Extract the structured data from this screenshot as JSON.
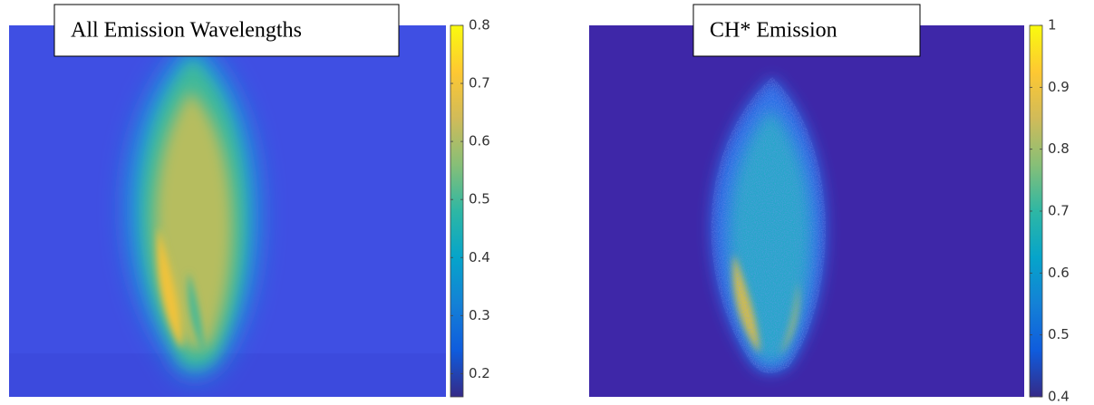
{
  "chart_data": [
    {
      "type": "heatmap",
      "title": "All Emission Wavelengths",
      "colormap": "parula",
      "clim": [
        0.16,
        0.8
      ],
      "cticks": [
        0.2,
        0.3,
        0.4,
        0.5,
        0.6,
        0.7,
        0.8
      ]
    },
    {
      "type": "heatmap",
      "title": "CH* Emission",
      "colormap": "parula",
      "clim": [
        0.4,
        1
      ],
      "cticks": [
        0.4,
        0.5,
        0.6,
        0.7,
        0.8,
        0.9,
        1
      ]
    }
  ]
}
